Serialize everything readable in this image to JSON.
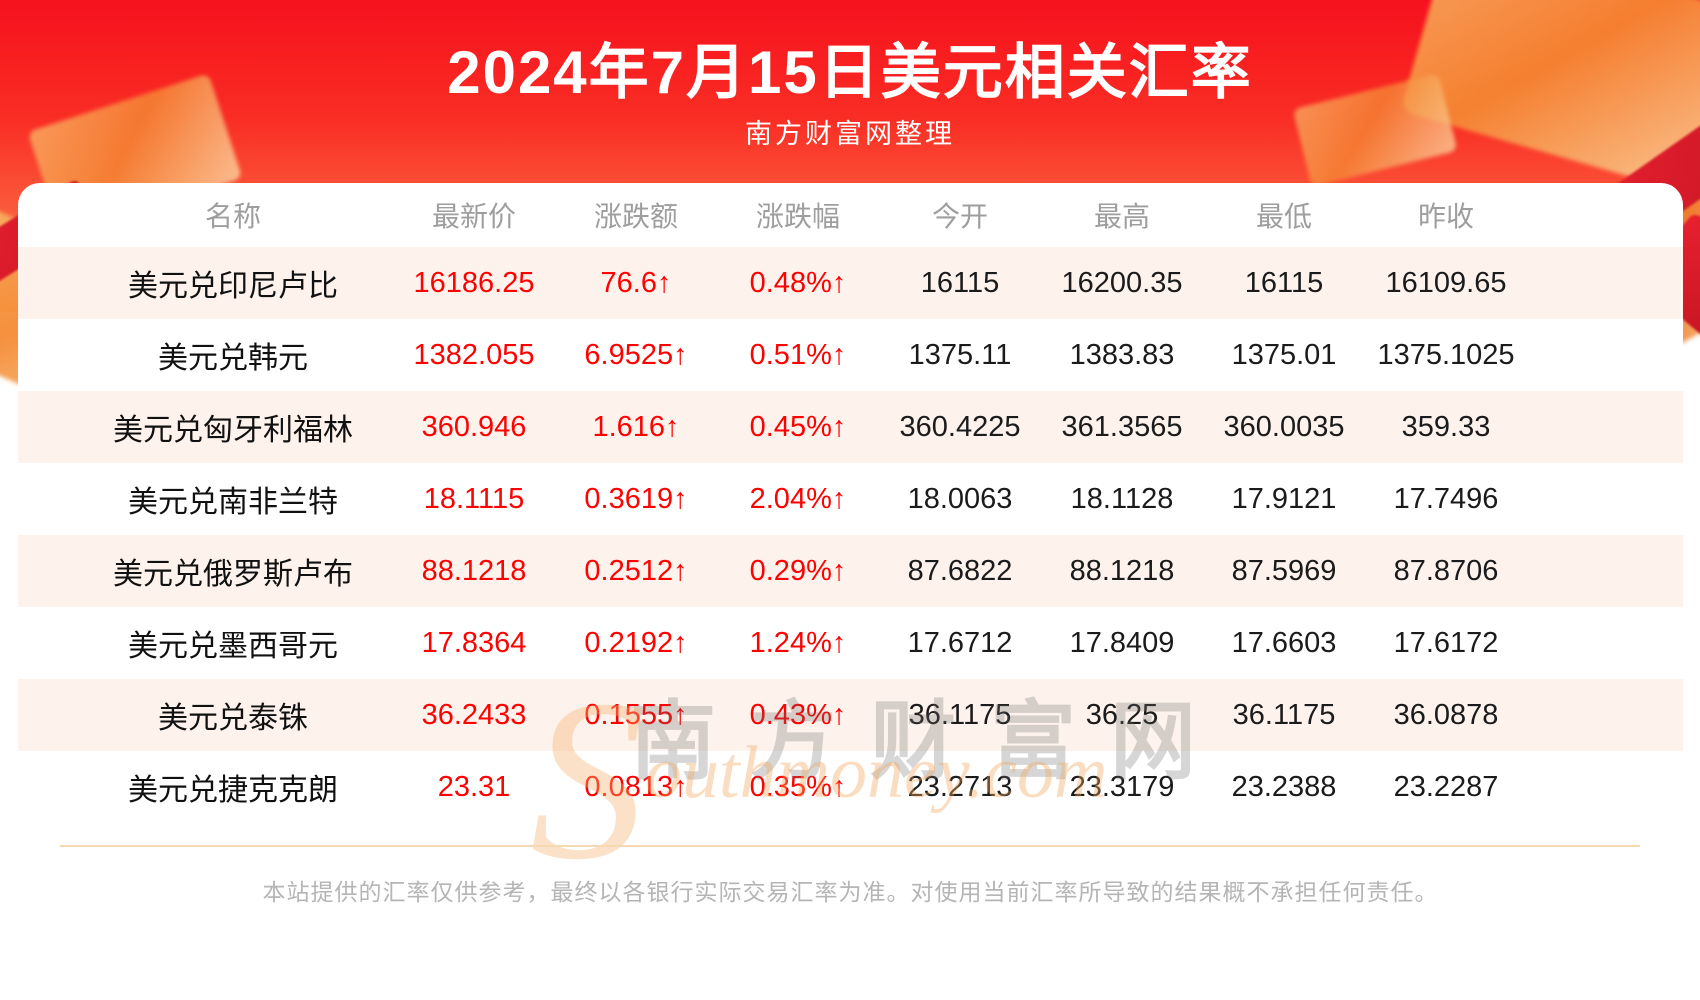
{
  "header": {
    "title": "2024年7月15日美元相关汇率",
    "subtitle": "南方财富网整理"
  },
  "watermark": {
    "zh": "南方财富网",
    "en_initial": "S",
    "en_rest": "outhmoney.com"
  },
  "chart_data": {
    "type": "table",
    "title": "2024年7月15日美元相关汇率",
    "columns": [
      "名称",
      "最新价",
      "涨跌额",
      "涨跌幅",
      "今开",
      "最高",
      "最低",
      "昨收"
    ],
    "rows": [
      [
        "美元兑印尼卢比",
        "16186.25",
        "76.6↑",
        "0.48%↑",
        "16115",
        "16200.35",
        "16115",
        "16109.65"
      ],
      [
        "美元兑韩元",
        "1382.055",
        "6.9525↑",
        "0.51%↑",
        "1375.11",
        "1383.83",
        "1375.01",
        "1375.1025"
      ],
      [
        "美元兑匈牙利福林",
        "360.946",
        "1.616↑",
        "0.45%↑",
        "360.4225",
        "361.3565",
        "360.0035",
        "359.33"
      ],
      [
        "美元兑南非兰特",
        "18.1115",
        "0.3619↑",
        "2.04%↑",
        "18.0063",
        "18.1128",
        "17.9121",
        "17.7496"
      ],
      [
        "美元兑俄罗斯卢布",
        "88.1218",
        "0.2512↑",
        "0.29%↑",
        "87.6822",
        "88.1218",
        "87.5969",
        "87.8706"
      ],
      [
        "美元兑墨西哥元",
        "17.8364",
        "0.2192↑",
        "1.24%↑",
        "17.6712",
        "17.8409",
        "17.6603",
        "17.6172"
      ],
      [
        "美元兑泰铢",
        "36.2433",
        "0.1555↑",
        "0.43%↑",
        "36.1175",
        "36.25",
        "36.1175",
        "36.0878"
      ],
      [
        "美元兑捷克克朗",
        "23.31",
        "0.0813↑",
        "0.35%↑",
        "23.2713",
        "23.3179",
        "23.2388",
        "23.2287"
      ]
    ]
  },
  "footer": {
    "disclaimer": "本站提供的汇率仅供参考，最终以各银行实际交易汇率为准。对使用当前汇率所导致的结果概不承担任何责任。"
  },
  "colors": {
    "banner_red_top": "#f6111d",
    "banner_red_bottom": "#fd9a68",
    "value_red": "#fe0101",
    "row_alt_pink": "#fdf2ec",
    "header_text_gray": "#9e9e9e",
    "divider_orange": "#f6d9b0",
    "disclaimer_gray": "#b5b5b5"
  }
}
